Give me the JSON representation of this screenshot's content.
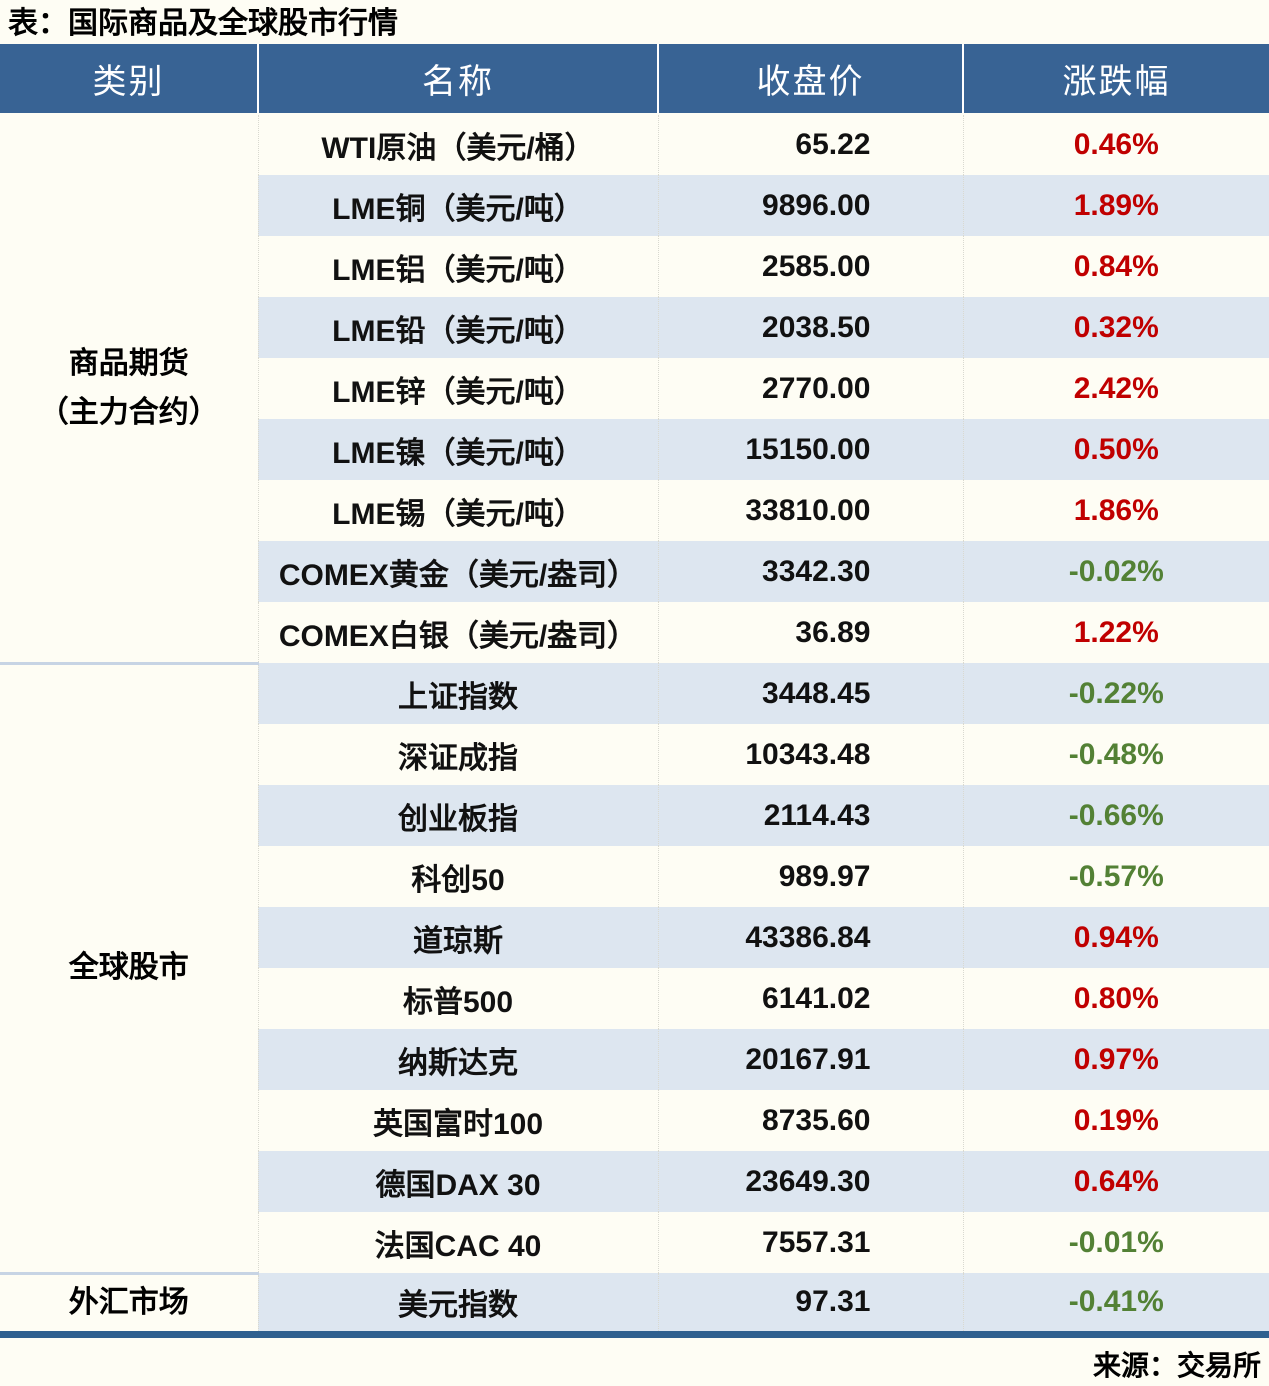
{
  "title": "表：国际商品及全球股市行情",
  "source": "来源：交易所",
  "colors": {
    "header_bg": "#386394",
    "header_text": "#ffffff",
    "stripe": "#dde6f0",
    "row_bg": "#fefdf4",
    "up": "#c00000",
    "down": "#538135",
    "divider": "#c7d4e4",
    "bottom_border": "#2f608f",
    "text": "#111111"
  },
  "table": {
    "headers": [
      "类别",
      "名称",
      "收盘价",
      "涨跌幅"
    ],
    "groups": [
      {
        "category": [
          "商品期货",
          "（主力合约）"
        ],
        "rows": [
          {
            "name": "WTI原油（美元/桶）",
            "close": "65.22",
            "change": "0.46%"
          },
          {
            "name": "LME铜（美元/吨）",
            "close": "9896.00",
            "change": "1.89%"
          },
          {
            "name": "LME铝（美元/吨）",
            "close": "2585.00",
            "change": "0.84%"
          },
          {
            "name": "LME铅（美元/吨）",
            "close": "2038.50",
            "change": "0.32%"
          },
          {
            "name": "LME锌（美元/吨）",
            "close": "2770.00",
            "change": "2.42%"
          },
          {
            "name": "LME镍（美元/吨）",
            "close": "15150.00",
            "change": "0.50%"
          },
          {
            "name": "LME锡（美元/吨）",
            "close": "33810.00",
            "change": "1.86%"
          },
          {
            "name": "COMEX黄金（美元/盎司）",
            "close": "3342.30",
            "change": "-0.02%"
          },
          {
            "name": "COMEX白银（美元/盎司）",
            "close": "36.89",
            "change": "1.22%"
          }
        ]
      },
      {
        "category": [
          "全球股市"
        ],
        "rows": [
          {
            "name": "上证指数",
            "close": "3448.45",
            "change": "-0.22%"
          },
          {
            "name": "深证成指",
            "close": "10343.48",
            "change": "-0.48%"
          },
          {
            "name": "创业板指",
            "close": "2114.43",
            "change": "-0.66%"
          },
          {
            "name": "科创50",
            "close": "989.97",
            "change": "-0.57%"
          },
          {
            "name": "道琼斯",
            "close": "43386.84",
            "change": "0.94%"
          },
          {
            "name": "标普500",
            "close": "6141.02",
            "change": "0.80%"
          },
          {
            "name": "纳斯达克",
            "close": "20167.91",
            "change": "0.97%"
          },
          {
            "name": "英国富时100",
            "close": "8735.60",
            "change": "0.19%"
          },
          {
            "name": "德国DAX 30",
            "close": "23649.30",
            "change": "0.64%"
          },
          {
            "name": "法国CAC 40",
            "close": "7557.31",
            "change": "-0.01%"
          }
        ]
      },
      {
        "category": [
          "外汇市场"
        ],
        "rows": [
          {
            "name": "美元指数",
            "close": "97.31",
            "change": "-0.41%"
          }
        ]
      }
    ]
  },
  "chart_data": {
    "type": "table",
    "title": "表：国际商品及全球股市行情",
    "columns": [
      "类别",
      "名称",
      "收盘价",
      "涨跌幅"
    ],
    "rows": [
      [
        "商品期货（主力合约）",
        "WTI原油（美元/桶）",
        65.22,
        "0.46%"
      ],
      [
        "商品期货（主力合约）",
        "LME铜（美元/吨）",
        9896.0,
        "1.89%"
      ],
      [
        "商品期货（主力合约）",
        "LME铝（美元/吨）",
        2585.0,
        "0.84%"
      ],
      [
        "商品期货（主力合约）",
        "LME铅（美元/吨）",
        2038.5,
        "0.32%"
      ],
      [
        "商品期货（主力合约）",
        "LME锌（美元/吨）",
        2770.0,
        "2.42%"
      ],
      [
        "商品期货（主力合约）",
        "LME镍（美元/吨）",
        15150.0,
        "0.50%"
      ],
      [
        "商品期货（主力合约）",
        "LME锡（美元/吨）",
        33810.0,
        "1.86%"
      ],
      [
        "商品期货（主力合约）",
        "COMEX黄金（美元/盎司）",
        3342.3,
        "-0.02%"
      ],
      [
        "商品期货（主力合约）",
        "COMEX白银（美元/盎司）",
        36.89,
        "1.22%"
      ],
      [
        "全球股市",
        "上证指数",
        3448.45,
        "-0.22%"
      ],
      [
        "全球股市",
        "深证成指",
        10343.48,
        "-0.48%"
      ],
      [
        "全球股市",
        "创业板指",
        2114.43,
        "-0.66%"
      ],
      [
        "全球股市",
        "科创50",
        989.97,
        "-0.57%"
      ],
      [
        "全球股市",
        "道琼斯",
        43386.84,
        "0.94%"
      ],
      [
        "全球股市",
        "标普500",
        6141.02,
        "0.80%"
      ],
      [
        "全球股市",
        "纳斯达克",
        20167.91,
        "0.97%"
      ],
      [
        "全球股市",
        "英国富时100",
        8735.6,
        "0.19%"
      ],
      [
        "全球股市",
        "德国DAX 30",
        23649.3,
        "0.64%"
      ],
      [
        "全球股市",
        "法国CAC 40",
        7557.31,
        "-0.01%"
      ],
      [
        "外汇市场",
        "美元指数",
        97.31,
        "-0.41%"
      ]
    ],
    "source": "来源：交易所"
  }
}
